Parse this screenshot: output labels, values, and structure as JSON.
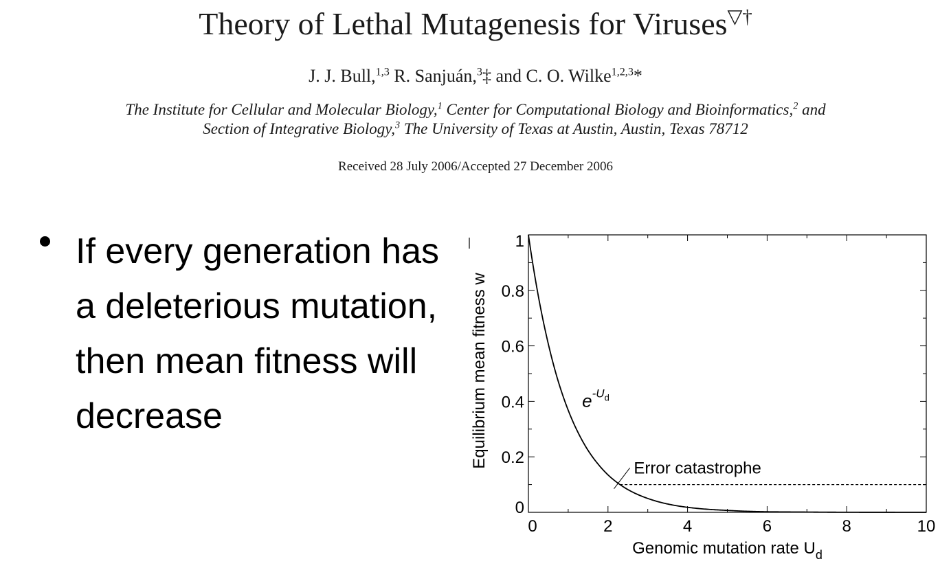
{
  "paper": {
    "title": "Theory of Lethal Mutagenesis for Viruses",
    "title_marks": "▽†",
    "authors": [
      {
        "name": "J. J. Bull,",
        "sup": "1,3",
        "after": " "
      },
      {
        "name": "R. Sanjuán,",
        "sup": "3",
        "after": "‡ and "
      },
      {
        "name": "C. O. Wilke",
        "sup": "1,2,3",
        "after": "*"
      }
    ],
    "affiliation_line1": [
      {
        "text": "The Institute for Cellular and Molecular Biology,",
        "sup": "1"
      },
      {
        "text": " Center for Computational Biology and Bioinformatics,",
        "sup": "2"
      },
      {
        "text": " and",
        "sup": ""
      }
    ],
    "affiliation_line2": [
      {
        "text": "Section of Integrative Biology,",
        "sup": "3"
      },
      {
        "text": " The University of Texas at Austin, Austin, Texas 78712",
        "sup": ""
      }
    ],
    "received": "Received 28 July 2006/Accepted 27 December 2006"
  },
  "bullet": {
    "text": "If every generation has a deleterious mutation, then mean fitness will decrease"
  },
  "chart_data": {
    "type": "line",
    "xlabel": "Genomic mutation rate U",
    "xlabel_sub": "d",
    "ylabel": "Equilibrium mean fitness w",
    "xlim": [
      0,
      10
    ],
    "ylim": [
      0,
      1
    ],
    "xticks": [
      0,
      2,
      4,
      6,
      8,
      10
    ],
    "xtick_labels": [
      "0",
      "2",
      "4",
      "6",
      "8",
      "10"
    ],
    "yticks": [
      0,
      0.2,
      0.4,
      0.6,
      0.8,
      1
    ],
    "ytick_labels": [
      "0",
      "0.2",
      "0.4",
      "0.6",
      "0.8",
      "1"
    ],
    "series": [
      {
        "label": "e^-Ud",
        "label_base": "e",
        "label_exp": "-U",
        "label_exp_sub": "d",
        "x": [
          0,
          0.25,
          0.5,
          0.75,
          1,
          1.25,
          1.5,
          1.75,
          2,
          2.5,
          3,
          3.5,
          4,
          4.5,
          5,
          6,
          7,
          8,
          9,
          10
        ],
        "y": [
          1,
          0.779,
          0.607,
          0.472,
          0.368,
          0.287,
          0.223,
          0.174,
          0.135,
          0.082,
          0.05,
          0.03,
          0.018,
          0.011,
          0.007,
          0.002,
          0.001,
          0.0003,
          0.0001,
          5e-05
        ]
      }
    ],
    "threshold": {
      "label": "Error catastrophe",
      "y": 0.1,
      "x_start": 2.3,
      "x_end": 10,
      "style": "dashed"
    },
    "grid": false
  }
}
